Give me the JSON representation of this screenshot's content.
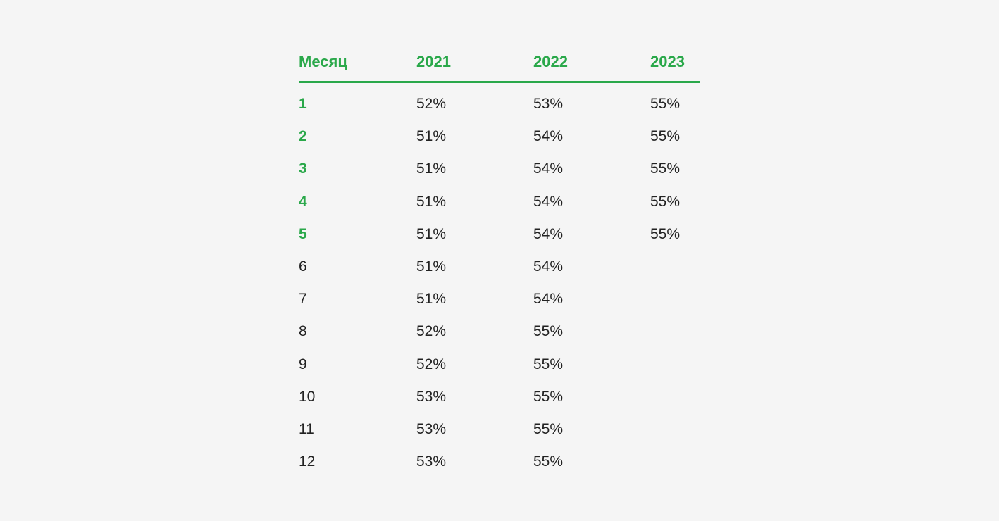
{
  "chart_data": {
    "type": "table",
    "columns": [
      "Месяц",
      "2021",
      "2022",
      "2023"
    ],
    "rows": [
      {
        "month": "1",
        "y2021": "52%",
        "y2022": "53%",
        "y2023": "55%",
        "highlight": true
      },
      {
        "month": "2",
        "y2021": "51%",
        "y2022": "54%",
        "y2023": "55%",
        "highlight": true
      },
      {
        "month": "3",
        "y2021": "51%",
        "y2022": "54%",
        "y2023": "55%",
        "highlight": true
      },
      {
        "month": "4",
        "y2021": "51%",
        "y2022": "54%",
        "y2023": "55%",
        "highlight": true
      },
      {
        "month": "5",
        "y2021": "51%",
        "y2022": "54%",
        "y2023": "55%",
        "highlight": true
      },
      {
        "month": "6",
        "y2021": "51%",
        "y2022": "54%",
        "y2023": "",
        "highlight": false
      },
      {
        "month": "7",
        "y2021": "51%",
        "y2022": "54%",
        "y2023": "",
        "highlight": false
      },
      {
        "month": "8",
        "y2021": "52%",
        "y2022": "55%",
        "y2023": "",
        "highlight": false
      },
      {
        "month": "9",
        "y2021": "52%",
        "y2022": "55%",
        "y2023": "",
        "highlight": false
      },
      {
        "month": "10",
        "y2021": "53%",
        "y2022": "55%",
        "y2023": "",
        "highlight": false
      },
      {
        "month": "11",
        "y2021": "53%",
        "y2022": "55%",
        "y2023": "",
        "highlight": false
      },
      {
        "month": "12",
        "y2021": "53%",
        "y2022": "55%",
        "y2023": "",
        "highlight": false
      }
    ]
  },
  "colors": {
    "accent": "#2aa84a",
    "text": "#222222",
    "background": "#f5f5f5"
  }
}
